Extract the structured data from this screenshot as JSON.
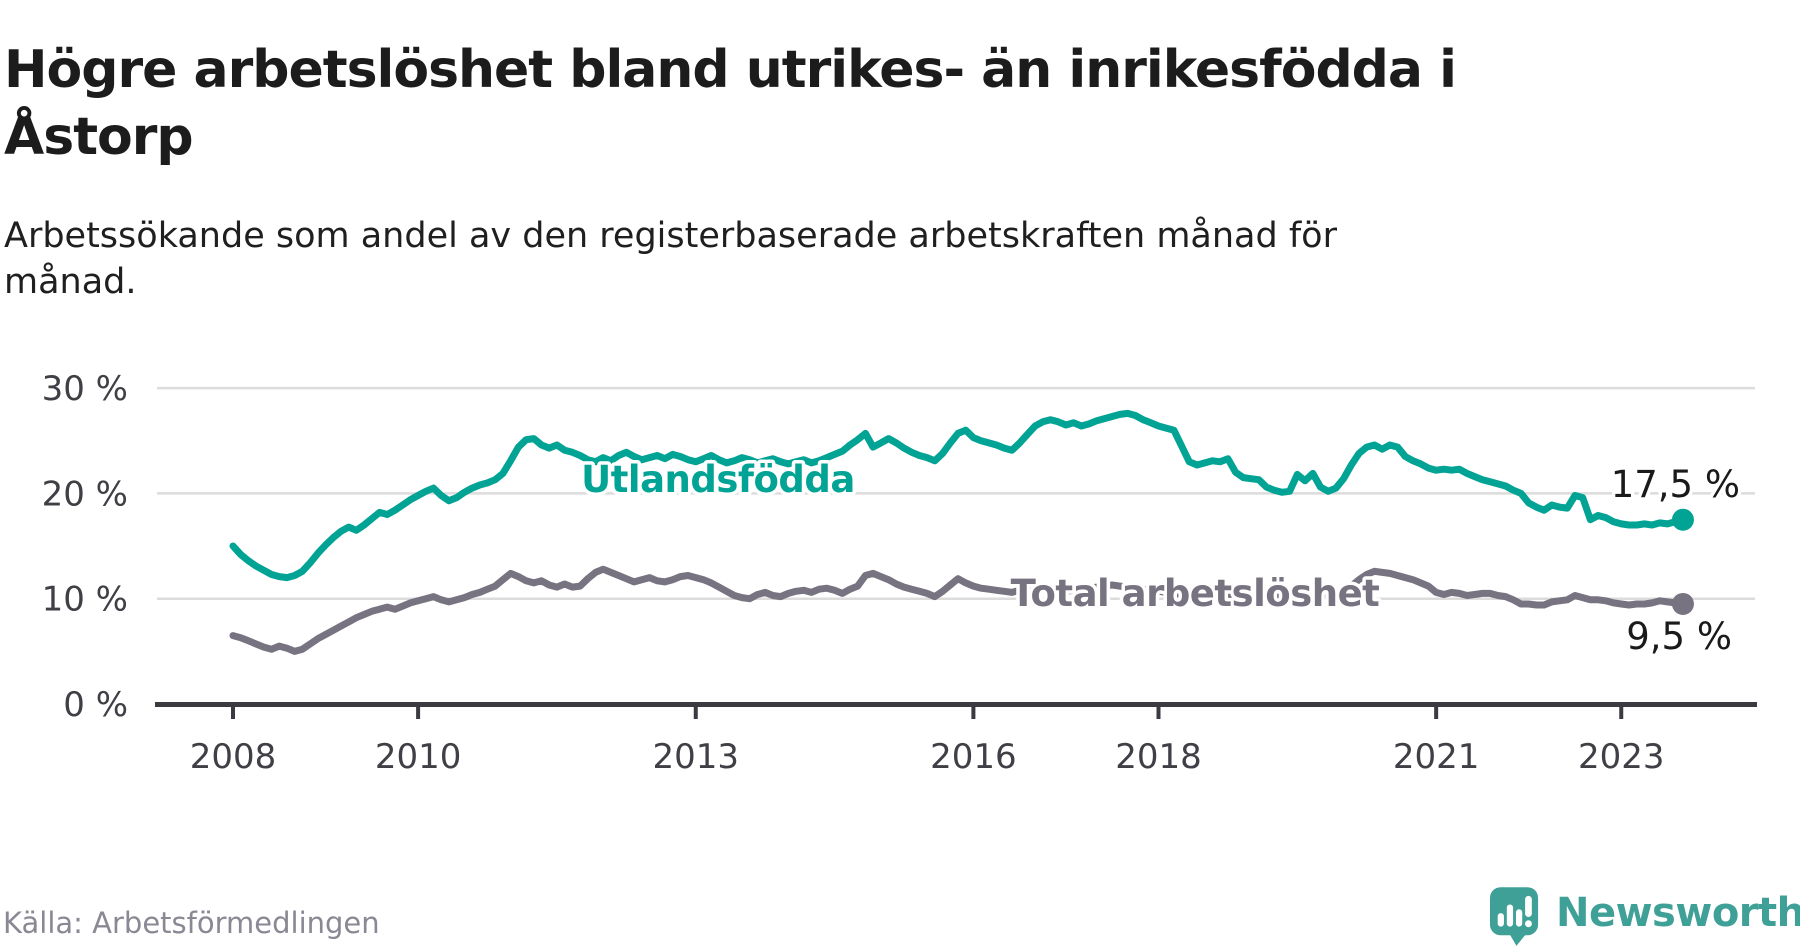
{
  "header": {
    "title_lines": [
      "Högre arbetslöshet bland utrikes- än inrikesfödda i",
      "Åstorp"
    ],
    "subtitle_lines": [
      "Arbetssökande som andel av den registerbaserade arbetskraften månad för",
      "månad."
    ]
  },
  "source": "Källa: Arbetsförmedlingen",
  "logo": {
    "text": "Newsworthy",
    "icon": "speech-bubble-bar-chart",
    "color": "#3fa098"
  },
  "chart_data": {
    "type": "line",
    "title": "Högre arbetslöshet bland utrikes- än inrikesfödda i Åstorp",
    "subtitle": "Arbetssökande som andel av den registerbaserade arbetskraften månad för månad.",
    "unit": "%",
    "frequency": "monthly",
    "x_start": "2008-01",
    "x_end": "2023-09",
    "ylim": [
      0,
      32
    ],
    "grid": "horizontal",
    "yticks": [
      {
        "value": 0,
        "label": "0 %"
      },
      {
        "value": 10,
        "label": "10 %"
      },
      {
        "value": 20,
        "label": "20 %"
      },
      {
        "value": 30,
        "label": "30 %"
      }
    ],
    "xticks": [
      {
        "value": 2008,
        "label": "2008"
      },
      {
        "value": 2010,
        "label": "2010"
      },
      {
        "value": 2013,
        "label": "2013"
      },
      {
        "value": 2016,
        "label": "2016"
      },
      {
        "value": 2018,
        "label": "2018"
      },
      {
        "value": 2021,
        "label": "2021"
      },
      {
        "value": 2023,
        "label": "2023"
      }
    ],
    "series": [
      {
        "name": "Utlandsfödda",
        "color": "#00a394",
        "end_label": "17,5 %",
        "last_value": 17.5,
        "values": [
          15.0,
          14.2,
          13.6,
          13.1,
          12.7,
          12.3,
          12.1,
          12.0,
          12.2,
          12.6,
          13.4,
          14.3,
          15.1,
          15.8,
          16.4,
          16.8,
          16.5,
          17.0,
          17.6,
          18.2,
          18.0,
          18.4,
          18.9,
          19.4,
          19.8,
          20.2,
          20.5,
          19.8,
          19.3,
          19.6,
          20.1,
          20.5,
          20.8,
          21.0,
          21.3,
          21.9,
          23.1,
          24.4,
          25.1,
          25.2,
          24.6,
          24.3,
          24.6,
          24.1,
          23.9,
          23.6,
          23.2,
          23.0,
          23.4,
          23.1,
          23.6,
          23.9,
          23.5,
          23.2,
          23.4,
          23.6,
          23.3,
          23.7,
          23.5,
          23.2,
          23.0,
          23.3,
          23.6,
          23.2,
          22.9,
          23.1,
          23.4,
          23.2,
          22.9,
          23.1,
          23.3,
          23.0,
          22.8,
          23.0,
          23.2,
          22.9,
          23.1,
          23.4,
          23.7,
          24.0,
          24.6,
          25.1,
          25.7,
          24.4,
          24.8,
          25.2,
          24.8,
          24.3,
          23.9,
          23.6,
          23.4,
          23.1,
          23.8,
          24.8,
          25.7,
          26.0,
          25.3,
          25.0,
          24.8,
          24.6,
          24.3,
          24.1,
          24.8,
          25.6,
          26.4,
          26.8,
          27.0,
          26.8,
          26.5,
          26.7,
          26.4,
          26.6,
          26.9,
          27.1,
          27.3,
          27.5,
          27.6,
          27.4,
          27.0,
          26.7,
          26.4,
          26.2,
          26.0,
          24.5,
          23.0,
          22.7,
          22.9,
          23.1,
          23.0,
          23.3,
          22.0,
          21.5,
          21.4,
          21.3,
          20.6,
          20.3,
          20.1,
          20.2,
          21.8,
          21.2,
          21.9,
          20.6,
          20.2,
          20.5,
          21.4,
          22.7,
          23.8,
          24.4,
          24.6,
          24.2,
          24.6,
          24.4,
          23.5,
          23.1,
          22.8,
          22.4,
          22.2,
          22.3,
          22.2,
          22.3,
          21.9,
          21.6,
          21.3,
          21.1,
          20.9,
          20.7,
          20.3,
          20.0,
          19.1,
          18.7,
          18.4,
          18.9,
          18.7,
          18.6,
          19.8,
          19.6,
          17.5,
          17.9,
          17.7,
          17.3,
          17.1,
          17.0,
          17.0,
          17.1,
          17.0,
          17.2,
          17.1,
          17.3,
          17.5
        ]
      },
      {
        "name": "Total arbetslöshet",
        "color": "#787380",
        "end_label": "9,5 %",
        "last_value": 9.5,
        "values": [
          6.5,
          6.3,
          6.0,
          5.7,
          5.4,
          5.2,
          5.5,
          5.3,
          5.0,
          5.2,
          5.7,
          6.2,
          6.6,
          7.0,
          7.4,
          7.8,
          8.2,
          8.5,
          8.8,
          9.0,
          9.2,
          9.0,
          9.3,
          9.6,
          9.8,
          10.0,
          10.2,
          9.9,
          9.7,
          9.9,
          10.1,
          10.4,
          10.6,
          10.9,
          11.2,
          11.8,
          12.4,
          12.1,
          11.7,
          11.5,
          11.7,
          11.3,
          11.1,
          11.4,
          11.1,
          11.2,
          11.9,
          12.5,
          12.8,
          12.5,
          12.2,
          11.9,
          11.6,
          11.8,
          12.0,
          11.7,
          11.6,
          11.8,
          12.1,
          12.2,
          12.0,
          11.8,
          11.5,
          11.1,
          10.7,
          10.3,
          10.1,
          10.0,
          10.4,
          10.6,
          10.3,
          10.2,
          10.5,
          10.7,
          10.8,
          10.6,
          10.9,
          11.0,
          10.8,
          10.5,
          10.9,
          11.2,
          12.2,
          12.4,
          12.1,
          11.8,
          11.4,
          11.1,
          10.9,
          10.7,
          10.5,
          10.2,
          10.7,
          11.3,
          11.9,
          11.5,
          11.2,
          11.0,
          10.9,
          10.8,
          10.7,
          10.6,
          10.8,
          11.0,
          11.1,
          11.0,
          10.9,
          10.8,
          10.7,
          10.8,
          10.9,
          11.0,
          11.1,
          11.2,
          11.3,
          11.2,
          11.1,
          11.0,
          10.9,
          10.8,
          10.7,
          10.6,
          10.5,
          10.4,
          10.3,
          10.4,
          10.5,
          10.6,
          10.5,
          10.4,
          10.3,
          10.2,
          10.3,
          10.4,
          10.3,
          10.2,
          10.1,
          10.2,
          10.4,
          10.3,
          10.5,
          10.4,
          10.3,
          10.5,
          10.8,
          11.2,
          11.8,
          12.3,
          12.6,
          12.5,
          12.4,
          12.2,
          12.0,
          11.8,
          11.5,
          11.2,
          10.6,
          10.4,
          10.6,
          10.5,
          10.3,
          10.4,
          10.5,
          10.5,
          10.3,
          10.2,
          9.9,
          9.5,
          9.5,
          9.4,
          9.4,
          9.7,
          9.8,
          9.9,
          10.3,
          10.1,
          9.9,
          9.9,
          9.8,
          9.6,
          9.5,
          9.4,
          9.5,
          9.5,
          9.6,
          9.8,
          9.7,
          9.6,
          9.5
        ]
      }
    ]
  }
}
